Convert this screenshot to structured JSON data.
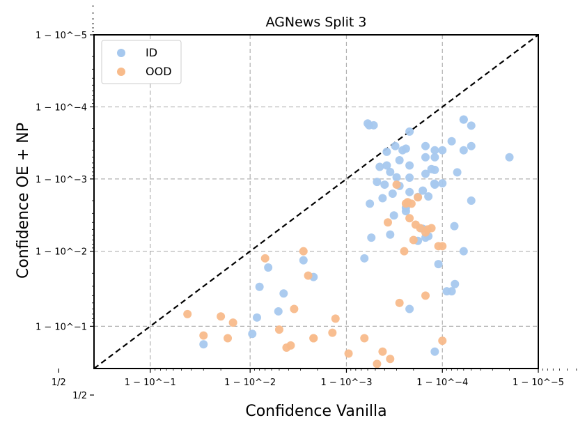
{
  "chart_data": {
    "type": "scatter",
    "title": "AGNews Split 3",
    "xlabel": "Confidence Vanilla",
    "ylabel": "Confidence OE + NP",
    "scale": "logit",
    "axis_range": [
      0.7,
      0.99999
    ],
    "xticks": [
      {
        "value": 0.5,
        "label": "1/2"
      },
      {
        "value": 0.9,
        "label": "1 − 10^−1"
      },
      {
        "value": 0.99,
        "label": "1 − 10^−2"
      },
      {
        "value": 0.999,
        "label": "1 − 10^−3"
      },
      {
        "value": 0.9999,
        "label": "1 − 10^−4"
      },
      {
        "value": 0.99999,
        "label": "1 − 10^−5"
      }
    ],
    "yticks": [
      {
        "value": 0.5,
        "label": "1/2"
      },
      {
        "value": 0.9,
        "label": "1 − 10^−1"
      },
      {
        "value": 0.99,
        "label": "1 − 10^−2"
      },
      {
        "value": 0.999,
        "label": "1 − 10^−3"
      },
      {
        "value": 0.9999,
        "label": "1 − 10^−4"
      },
      {
        "value": 0.99999,
        "label": "1 − 10^−5"
      }
    ],
    "grid": true,
    "reference_line": "y = x (dashed)",
    "legend_position": "top-left",
    "series": [
      {
        "name": "ID",
        "color": "#a6c8ee",
        "points": [
          [
            0.81,
            0.575
          ],
          [
            0.97,
            0.835
          ],
          [
            0.9905,
            0.876
          ],
          [
            0.9935,
            0.9833
          ],
          [
            0.992,
            0.9695
          ],
          [
            0.9955,
            0.9625
          ],
          [
            0.9978,
            0.9775
          ],
          [
            0.9949,
            0.9355
          ],
          [
            0.9915,
            0.9225
          ],
          [
            0.9972,
            0.9867
          ],
          [
            0.99935,
            0.9875
          ],
          [
            0.99945,
            0.9935
          ],
          [
            0.99965,
            0.9941
          ],
          [
            0.99943,
            0.9978
          ],
          [
            0.9996,
            0.9988
          ],
          [
            0.99962,
            0.99935
          ],
          [
            0.99968,
            0.9968
          ],
          [
            0.99972,
            0.99875
          ],
          [
            0.99976,
            0.9972
          ],
          [
            0.99958,
            0.99815
          ],
          [
            0.9997,
            0.99905
          ],
          [
            0.99978,
            0.99935
          ],
          [
            0.99955,
            0.99932
          ],
          [
            0.99972,
            0.99945
          ],
          [
            0.99974,
            0.9996
          ],
          [
            0.99965,
            0.9992
          ],
          [
            0.99976,
            0.99962
          ],
          [
            0.99969,
            0.99965
          ],
          [
            0.99978,
            0.99978
          ],
          [
            0.99962,
            0.99958
          ],
          [
            0.99942,
            0.99982
          ],
          [
            0.99985,
            0.99965
          ],
          [
            0.99952,
            0.9989
          ],
          [
            0.99948,
            0.99982
          ],
          [
            0.9994,
            0.99983
          ],
          [
            0.99985,
            0.9995
          ],
          [
            0.99988,
            0.9988
          ],
          [
            0.99985,
            0.99915
          ],
          [
            0.99987,
            0.99927
          ],
          [
            0.99978,
            0.99904
          ],
          [
            0.99982,
            0.99822
          ],
          [
            0.99984,
            0.99855
          ],
          [
            0.99986,
            0.99825
          ],
          [
            0.99978,
            0.99848
          ],
          [
            0.99967,
            0.9984
          ],
          [
            0.9999,
            0.99885
          ],
          [
            0.9999,
            0.9996
          ],
          [
            0.99992,
            0.9997
          ],
          [
            0.99993,
            0.99919
          ],
          [
            0.99985,
            0.9935
          ],
          [
            0.99976,
            0.9975
          ],
          [
            0.99982,
            0.9928
          ],
          [
            0.99988,
            0.99925
          ],
          [
            0.99988,
            0.9995
          ],
          [
            0.99994,
            0.99985
          ],
          [
            0.99995,
            0.99965
          ],
          [
            0.99988,
            0.9996
          ],
          [
            0.99994,
            0.9996
          ],
          [
            0.99994,
            0.99985
          ],
          [
            0.99984,
            0.9951
          ],
          [
            0.99978,
            0.94
          ],
          [
            0.99988,
            0.8
          ],
          [
            0.99992,
            0.965
          ],
          [
            0.99988,
            0.52
          ],
          [
            0.99989,
            0.985
          ],
          [
            0.99994,
            0.99
          ],
          [
            0.999879,
            0.998837
          ],
          [
            0.99995,
            0.998
          ],
          [
            0.99998,
            0.9995
          ],
          [
            0.99995,
            0.999818
          ],
          [
            0.999926,
            0.972
          ],
          [
            0.999925,
            0.9955
          ],
          [
            0.99986,
            0.9938
          ],
          [
            0.99991,
            0.965
          ]
        ]
      },
      {
        "name": "OOD",
        "color": "#f8bb8b",
        "points": [
          [
            0.61,
            0.53
          ],
          [
            0.62,
            0.54
          ],
          [
            0.63,
            0.54
          ],
          [
            0.66,
            0.54
          ],
          [
            0.71,
            0.55
          ],
          [
            0.75,
            0.53
          ],
          [
            0.89,
            0.5
          ],
          [
            0.965,
            0.6
          ],
          [
            0.97,
            0.87
          ],
          [
            0.9565,
            0.93
          ],
          [
            0.98,
            0.925
          ],
          [
            0.983,
            0.86
          ],
          [
            0.985,
            0.91
          ],
          [
            0.9855,
            0.53
          ],
          [
            0.9935,
            0.54
          ],
          [
            0.993,
            0.9875
          ],
          [
            0.9965,
            0.94
          ],
          [
            0.9975,
            0.9785
          ],
          [
            0.9978,
            0.86
          ],
          [
            0.9899,
            0.54
          ],
          [
            0.9874,
            0.66
          ],
          [
            0.989,
            0.51
          ],
          [
            0.9895,
            0.55
          ],
          [
            0.9905,
            0.68
          ],
          [
            0.995,
            0.89
          ],
          [
            0.9955,
            0.54
          ],
          [
            0.9958,
            0.82
          ],
          [
            0.9962,
            0.83
          ],
          [
            0.9972,
            0.99
          ],
          [
            0.9978,
            0.86
          ],
          [
            0.9986,
            0.88
          ],
          [
            0.9987,
            0.92
          ],
          [
            0.99905,
            0.79
          ],
          [
            0.99935,
            0.86
          ],
          [
            0.99945,
            0.62
          ],
          [
            0.99952,
            0.73
          ],
          [
            0.99958,
            0.8
          ],
          [
            0.99965,
            0.76
          ],
          [
            0.9997,
            0.51
          ],
          [
            0.99965,
            0.56
          ],
          [
            0.99955,
            0.52
          ],
          [
            0.99952,
            0.55
          ],
          [
            0.99943,
            0.55
          ],
          [
            0.99935,
            0.53
          ],
          [
            0.99925,
            0.51
          ],
          [
            0.99972,
            0.95
          ],
          [
            0.99975,
            0.99
          ],
          [
            0.9998,
            0.993
          ],
          [
            0.99985,
            0.9945
          ],
          [
            0.99963,
            0.996
          ],
          [
            0.99978,
            0.9965
          ],
          [
            0.99982,
            0.9982
          ],
          [
            0.99977,
            0.9979
          ],
          [
            0.99976,
            0.99781
          ],
          [
            0.99981,
            0.9957
          ],
          [
            0.99983,
            0.9952
          ],
          [
            0.99987,
            0.9952
          ],
          [
            0.999857,
            0.995
          ],
          [
            0.99989,
            0.9915
          ],
          [
            0.9999,
            0.9915
          ],
          [
            0.99985,
            0.96
          ],
          [
            0.9999,
            0.85
          ],
          [
            0.99992,
            0.52
          ],
          [
            0.99975,
            0.56
          ],
          [
            0.99985,
            0.53
          ],
          [
            0.9997,
            0.58
          ],
          [
            0.9997,
            0.9988
          ],
          [
            0.99979,
            0.9978
          ]
        ]
      }
    ]
  },
  "legend": {
    "items": [
      {
        "label": "ID",
        "color": "#a6c8ee"
      },
      {
        "label": "OOD",
        "color": "#f8bb8b"
      }
    ]
  }
}
